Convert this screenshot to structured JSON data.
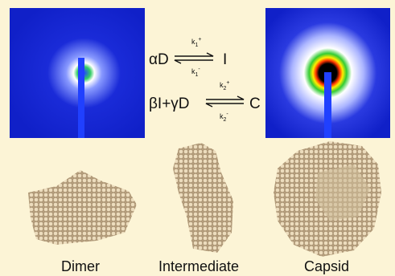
{
  "scheme": {
    "reaction1": {
      "left": "αD",
      "right": "I",
      "forward": {
        "symbol": "k",
        "sub": "1",
        "sup": "+"
      },
      "backward": {
        "symbol": "k",
        "sub": "1",
        "sup": "-"
      }
    },
    "reaction2": {
      "left": "βI+γD",
      "right": "C",
      "forward": {
        "symbol": "k",
        "sub": "2",
        "sup": "+"
      },
      "backward": {
        "symbol": "k",
        "sub": "2",
        "sup": "-"
      }
    }
  },
  "structures": [
    {
      "label": "Dimer"
    },
    {
      "label": "Intermediate"
    },
    {
      "label": "Capsid"
    }
  ]
}
